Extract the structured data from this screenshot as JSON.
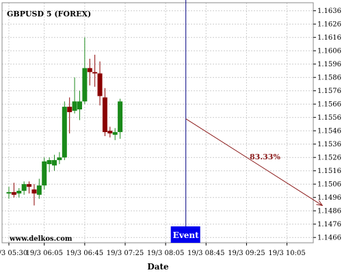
{
  "chart_data": {
    "type": "candlestick",
    "title": "GBPUSD 5 (FOREX)",
    "xlabel": "Date",
    "ylabel": "",
    "ylim": [
      1.1462,
      1.1642
    ],
    "grid": true,
    "y_ticks": [
      "1.1636",
      "1.1626",
      "1.1616",
      "1.1606",
      "1.1596",
      "1.1586",
      "1.1576",
      "1.1566",
      "1.1556",
      "1.1546",
      "1.1536",
      "1.1526",
      "1.1516",
      "1.1506",
      "1.1496",
      "1.1486",
      "1.1476",
      "1.1466"
    ],
    "x_ticks": [
      "19/3 05:30",
      "19/3 06:05",
      "19/3 06:45",
      "19/3 07:25",
      "19/3 08:05",
      "19/3 08:45",
      "19/3 09:25",
      "19/3 10:05"
    ],
    "watermark": "www.delkos.com",
    "event": {
      "label": "Event",
      "x": "19/3 08:25"
    },
    "forecast": {
      "label": "83.33%",
      "from": {
        "x": "19/3 08:25",
        "y": 1.1555
      },
      "to": {
        "x": "19/3 10:40",
        "y": 1.149
      },
      "color": "#8b1a1a"
    },
    "colors": {
      "up": "#1a8a1a",
      "down": "#8b0000",
      "event": "#0000ee",
      "grid": "#cccccc"
    },
    "candles": [
      {
        "time": "19/3 05:30",
        "open": 1.1499,
        "high": 1.1504,
        "low": 1.1495,
        "close": 1.15
      },
      {
        "time": "19/3 05:35",
        "open": 1.15,
        "high": 1.1507,
        "low": 1.1496,
        "close": 1.1498
      },
      {
        "time": "19/3 05:40",
        "open": 1.1499,
        "high": 1.1503,
        "low": 1.1496,
        "close": 1.1501
      },
      {
        "time": "19/3 05:45",
        "open": 1.1501,
        "high": 1.1508,
        "low": 1.1498,
        "close": 1.1506
      },
      {
        "time": "19/3 05:50",
        "open": 1.1506,
        "high": 1.1508,
        "low": 1.1499,
        "close": 1.1504
      },
      {
        "time": "19/3 05:55",
        "open": 1.1502,
        "high": 1.1506,
        "low": 1.149,
        "close": 1.1499
      },
      {
        "time": "19/3 06:00",
        "open": 1.1498,
        "high": 1.151,
        "low": 1.1495,
        "close": 1.1505
      },
      {
        "time": "19/3 06:05",
        "open": 1.1505,
        "high": 1.1526,
        "low": 1.1502,
        "close": 1.1523
      },
      {
        "time": "19/3 06:10",
        "open": 1.1521,
        "high": 1.1526,
        "low": 1.1515,
        "close": 1.1524
      },
      {
        "time": "19/3 06:15",
        "open": 1.152,
        "high": 1.1528,
        "low": 1.1516,
        "close": 1.1524
      },
      {
        "time": "19/3 06:20",
        "open": 1.1524,
        "high": 1.153,
        "low": 1.1521,
        "close": 1.1526
      },
      {
        "time": "19/3 06:25",
        "open": 1.1526,
        "high": 1.1568,
        "low": 1.1524,
        "close": 1.1564
      },
      {
        "time": "19/3 06:30",
        "open": 1.1564,
        "high": 1.1571,
        "low": 1.1544,
        "close": 1.156
      },
      {
        "time": "19/3 06:35",
        "open": 1.1561,
        "high": 1.1586,
        "low": 1.1559,
        "close": 1.1568
      },
      {
        "time": "19/3 06:40",
        "open": 1.1562,
        "high": 1.1576,
        "low": 1.1554,
        "close": 1.1568
      },
      {
        "time": "19/3 06:45",
        "open": 1.1568,
        "high": 1.1616,
        "low": 1.1566,
        "close": 1.1593
      },
      {
        "time": "19/3 06:50",
        "open": 1.1593,
        "high": 1.16,
        "low": 1.158,
        "close": 1.159
      },
      {
        "time": "19/3 06:55",
        "open": 1.159,
        "high": 1.1603,
        "low": 1.1579,
        "close": 1.1589
      },
      {
        "time": "19/3 07:00",
        "open": 1.1589,
        "high": 1.1598,
        "low": 1.1565,
        "close": 1.1572
      },
      {
        "time": "19/3 07:05",
        "open": 1.1571,
        "high": 1.1578,
        "low": 1.1542,
        "close": 1.1545
      },
      {
        "time": "19/3 07:10",
        "open": 1.1546,
        "high": 1.1549,
        "low": 1.1541,
        "close": 1.1544
      },
      {
        "time": "19/3 07:15",
        "open": 1.1543,
        "high": 1.1548,
        "low": 1.1539,
        "close": 1.1545
      },
      {
        "time": "19/3 07:20",
        "open": 1.1545,
        "high": 1.157,
        "low": 1.154,
        "close": 1.1568
      }
    ]
  }
}
